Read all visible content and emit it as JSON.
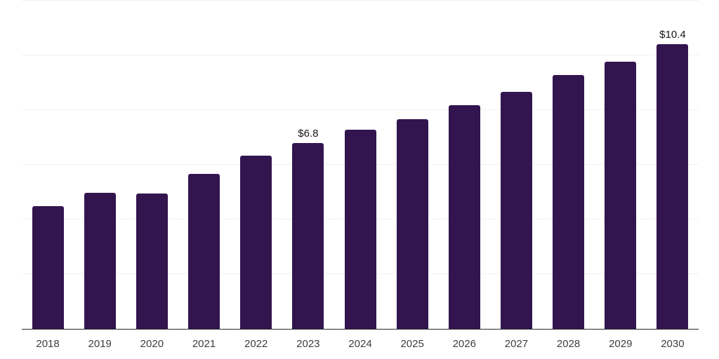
{
  "chart_data": {
    "type": "bar",
    "title": "",
    "xlabel": "",
    "ylabel": "",
    "categories": [
      "2018",
      "2019",
      "2020",
      "2021",
      "2022",
      "2023",
      "2024",
      "2025",
      "2026",
      "2027",
      "2028",
      "2029",
      "2030"
    ],
    "values": [
      4.49,
      4.98,
      4.96,
      5.67,
      6.34,
      6.8,
      7.27,
      7.67,
      8.18,
      8.66,
      9.28,
      9.76,
      10.4
    ],
    "data_labels": [
      {
        "category": "2023",
        "text": "$6.8"
      },
      {
        "category": "2030",
        "text": "$10.4"
      }
    ],
    "ylim": [
      0,
      12
    ],
    "grid_step": 2,
    "grid": true,
    "legend": false,
    "y_tick_labels_visible": false,
    "colors": {
      "bar": "#32154F",
      "gridline": "#F1F1F1",
      "axis_line": "#2B2B2B",
      "tick_label": "#3D3D3D",
      "data_label": "#161616",
      "background": "#FFFFFF"
    }
  }
}
